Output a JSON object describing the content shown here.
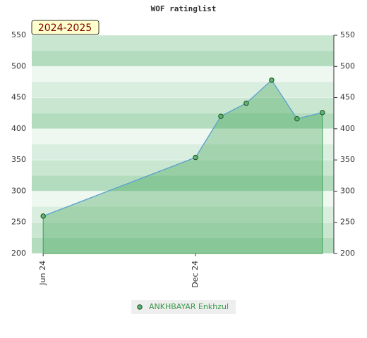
{
  "chart_data": {
    "type": "area",
    "title": "WOF ratinglist",
    "subtitle": "2024-2025",
    "x": [
      0,
      6,
      7,
      8,
      9,
      10,
      11
    ],
    "xlim": [
      -0.45,
      11.45
    ],
    "xticks": [
      {
        "value": 0,
        "label": "Jun 24"
      },
      {
        "value": 6,
        "label": "Dec 24"
      }
    ],
    "series": [
      {
        "name": "ANKHBAYAR Enkhzul",
        "color": "#3aa050",
        "values": [
          260,
          354,
          420,
          441,
          478,
          416,
          426
        ]
      }
    ],
    "ylim": [
      200,
      550
    ],
    "yticks": [
      200,
      250,
      300,
      350,
      400,
      450,
      500,
      550
    ],
    "y2lim": [
      200,
      550
    ],
    "y2ticks": [
      200,
      250,
      300,
      350,
      400,
      450,
      500,
      550
    ],
    "grid": true
  }
}
